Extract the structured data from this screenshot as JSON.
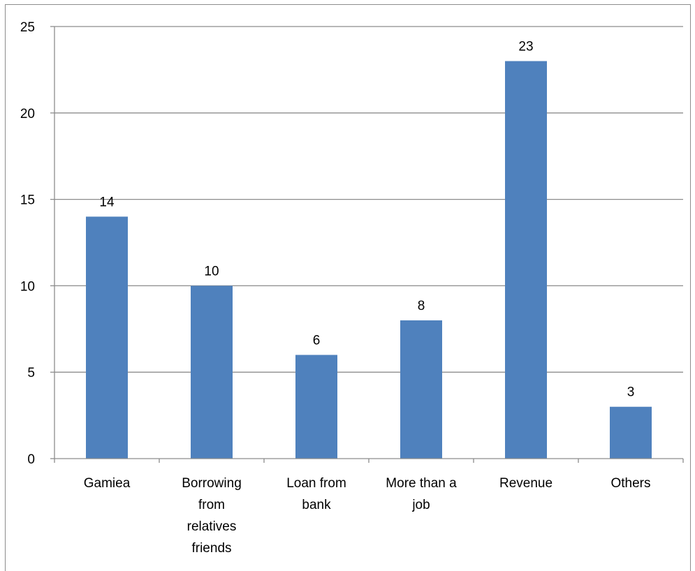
{
  "chart_data": {
    "type": "bar",
    "categories": [
      [
        "Gamiea"
      ],
      [
        "Borrowing",
        "from",
        "relatives",
        "friends"
      ],
      [
        "Loan from",
        "bank"
      ],
      [
        "More than a",
        "job"
      ],
      [
        "Revenue"
      ],
      [
        "Others"
      ]
    ],
    "values": [
      14,
      10,
      6,
      8,
      23,
      3
    ],
    "data_labels": [
      "14",
      "10",
      "6",
      "8",
      "23",
      "3"
    ],
    "ylim": [
      0,
      25
    ],
    "yticks": [
      0,
      5,
      10,
      15,
      20,
      25
    ],
    "ytick_labels": [
      "0",
      "5",
      "10",
      "15",
      "20",
      "25"
    ],
    "title": "",
    "xlabel": "",
    "ylabel": "",
    "grid": true,
    "legend": false,
    "colors": {
      "bar": "#4f81bd",
      "grid": "#8c8c8c",
      "axis": "#8c8c8c",
      "frame": "#8c8c8c"
    }
  }
}
